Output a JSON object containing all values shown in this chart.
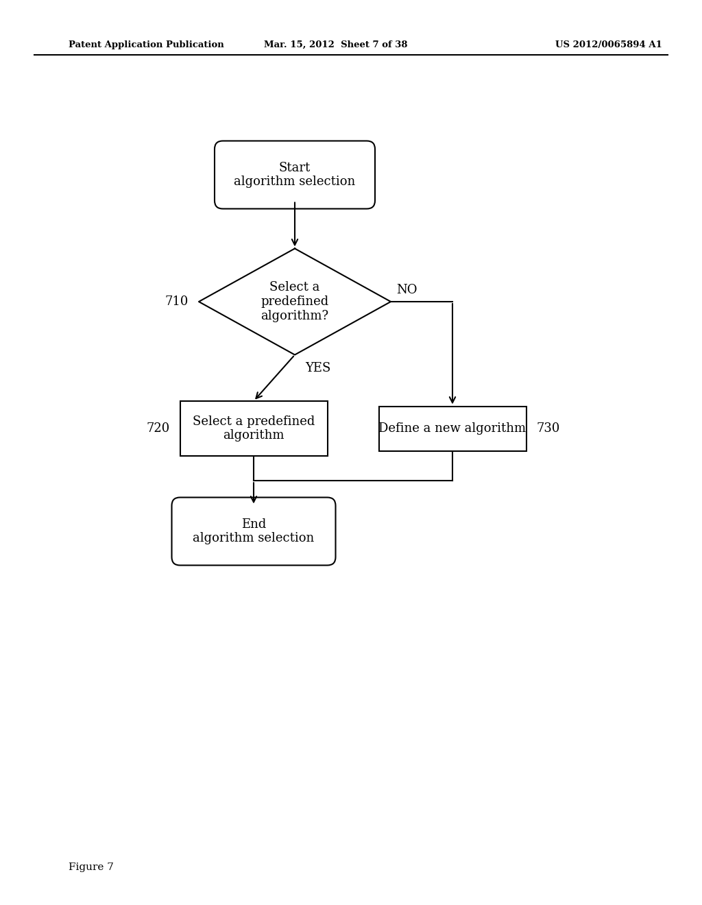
{
  "bg_color": "#ffffff",
  "header_left": "Patent Application Publication",
  "header_mid": "Mar. 15, 2012  Sheet 7 of 38",
  "header_right": "US 2012/0065894 A1",
  "figure_label": "Figure 7",
  "start_text": "Start\nalgorithm selection",
  "diamond_text": "Select a\npredefined\nalgorithm?",
  "box_left_text": "Select a predefined\nalgorithm",
  "box_right_text": "Define a new algorithm",
  "end_text": "End\nalgorithm selection",
  "label_710": "710",
  "label_720": "720",
  "label_730": "730",
  "label_yes": "YES",
  "label_no": "NO"
}
